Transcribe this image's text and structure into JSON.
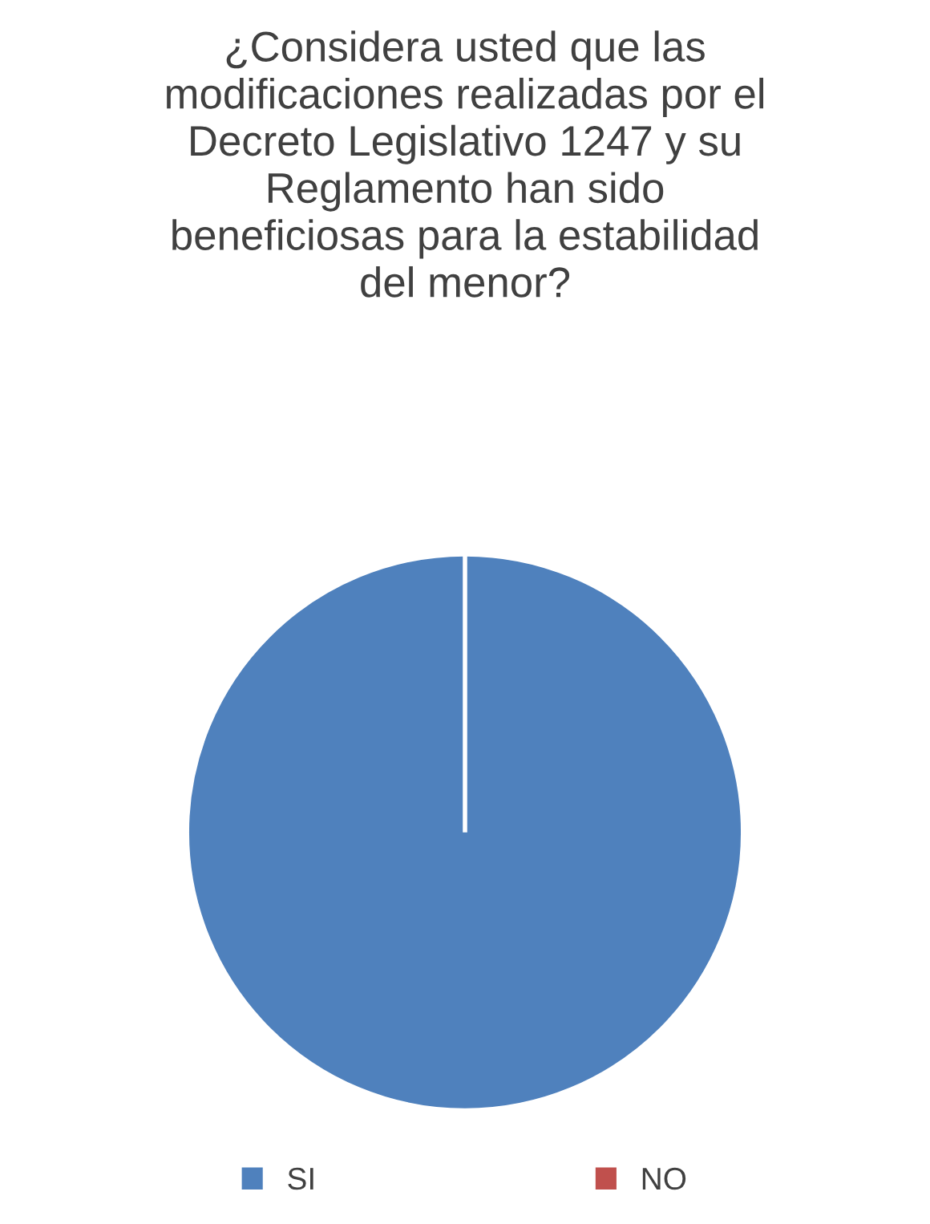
{
  "chart_data": {
    "type": "pie",
    "title": "¿Considera usted que las\nmodificaciones realizadas por el\nDecreto Legislativo 1247 y su\nReglamento han sido\nbeneficiosas para la estabilidad\ndel menor?",
    "categories": [
      "SI",
      "NO"
    ],
    "values": [
      100,
      0
    ],
    "colors": [
      "#4f81bd",
      "#c0504d"
    ],
    "legend": "bottom"
  }
}
